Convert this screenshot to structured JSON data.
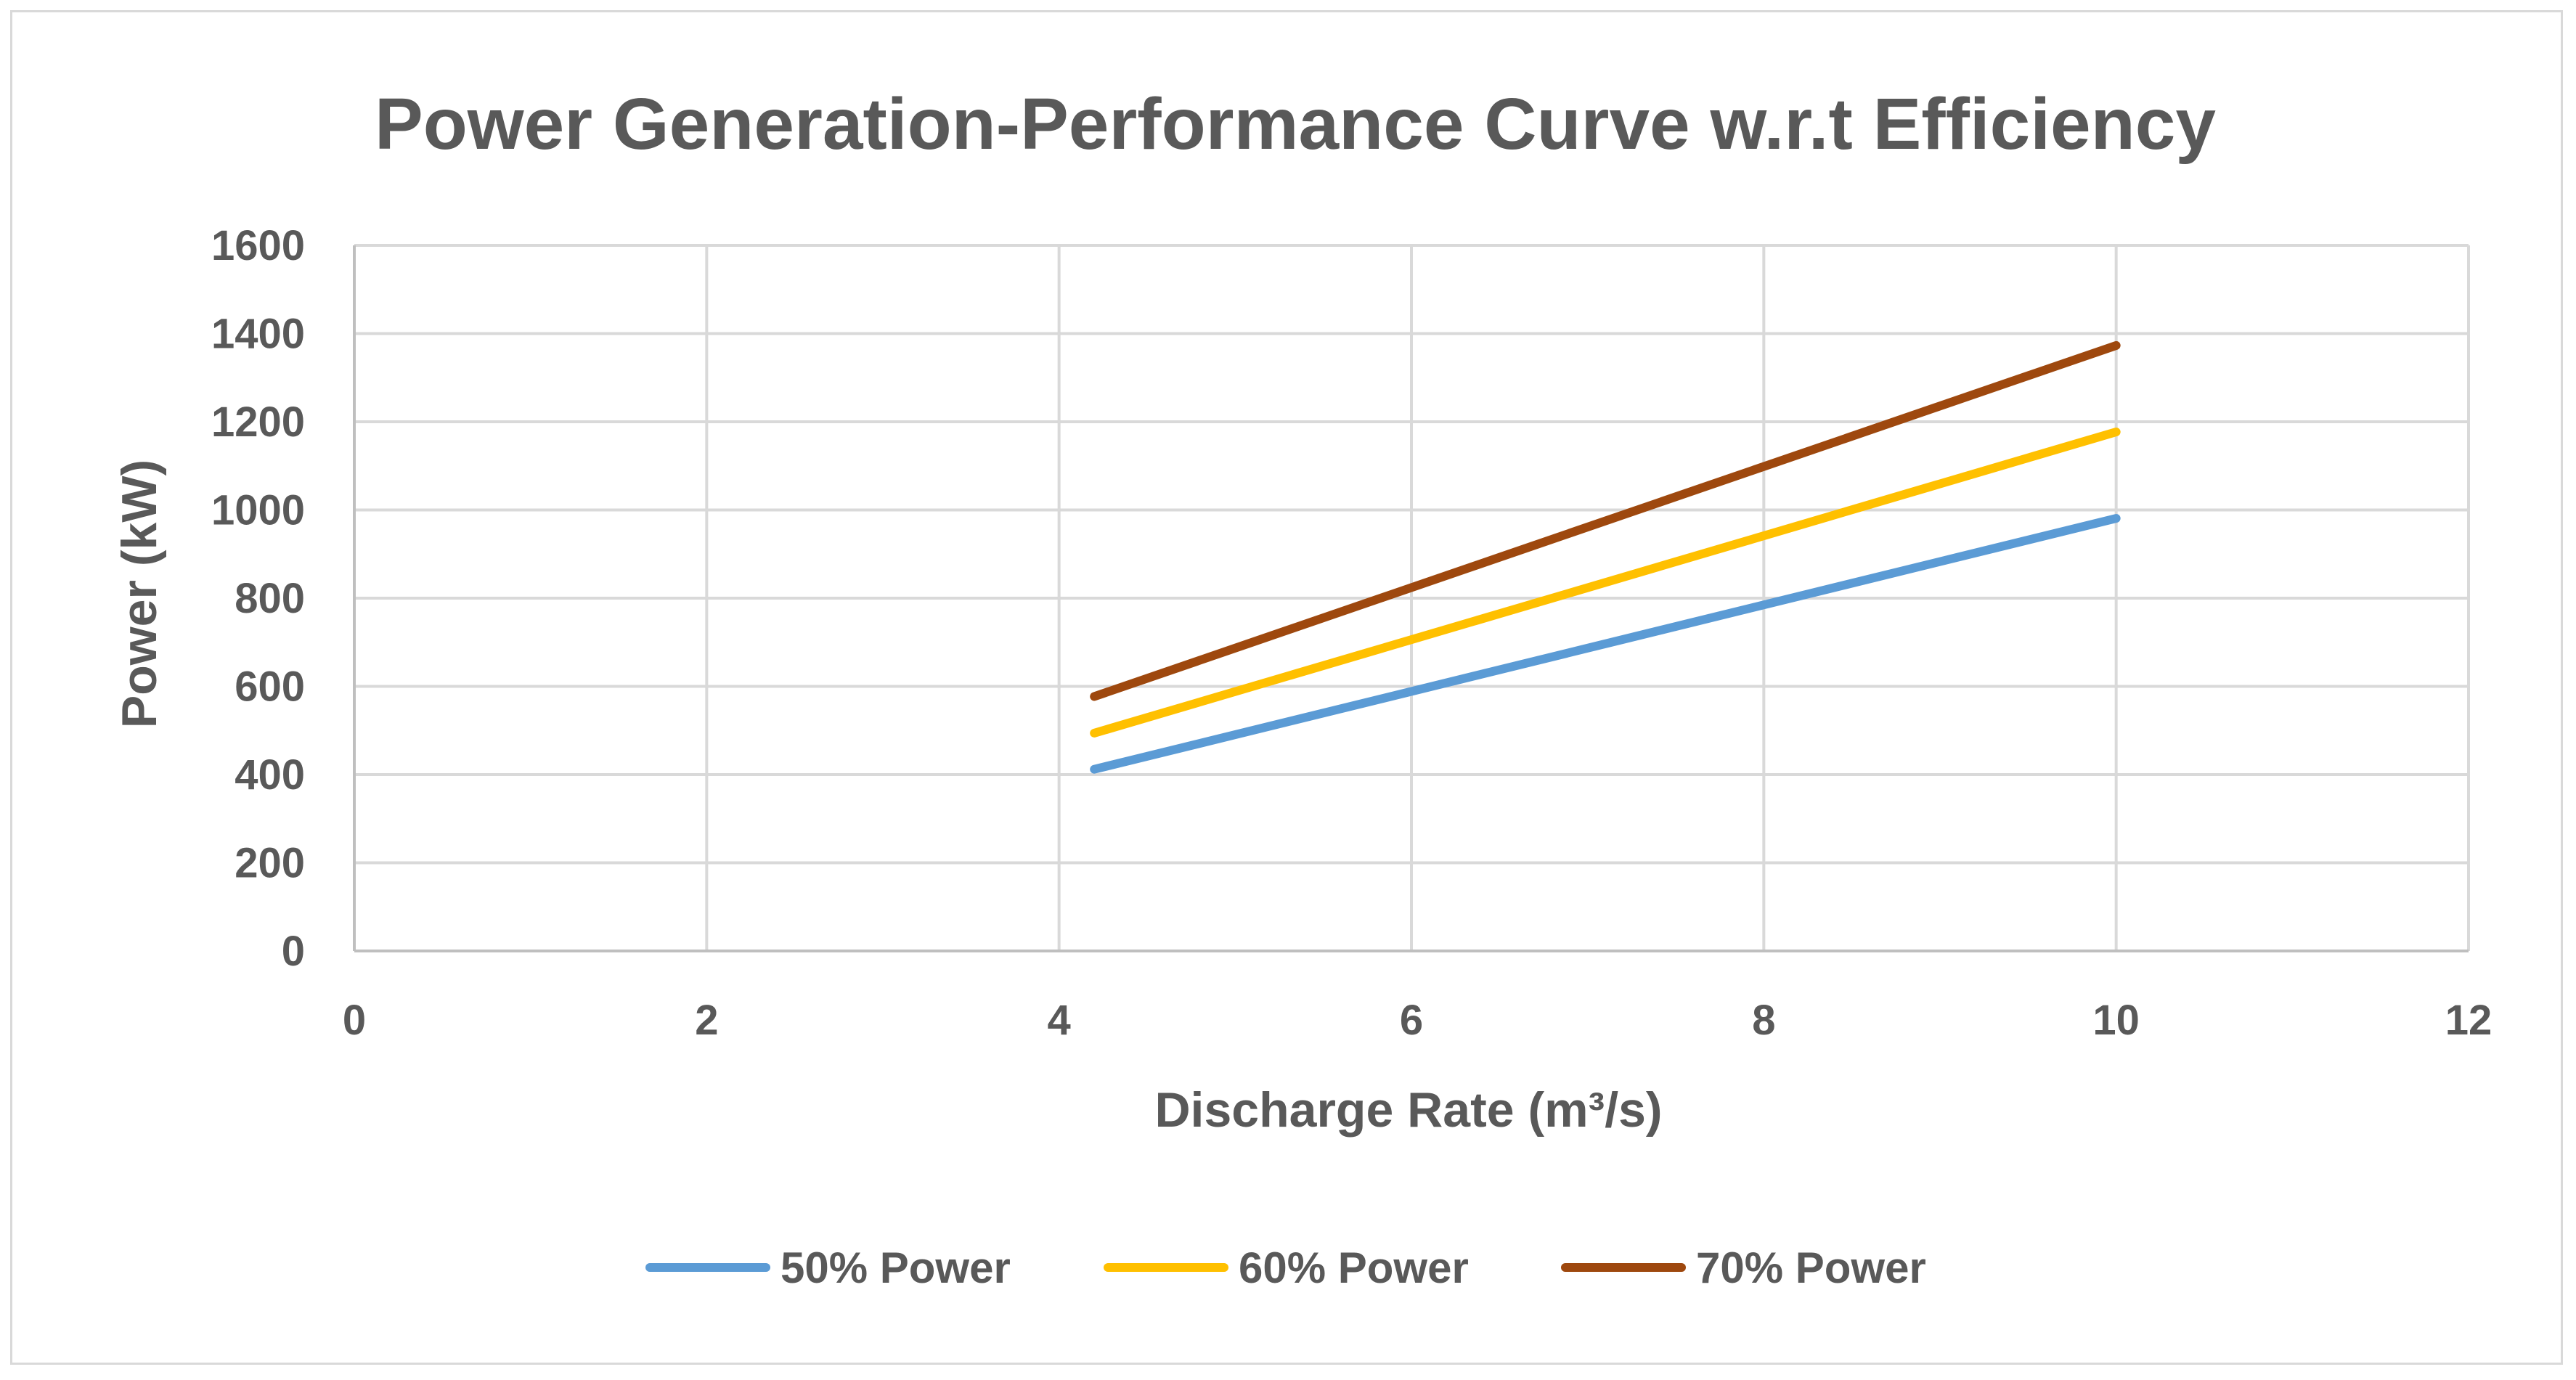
{
  "chart_data": {
    "type": "line",
    "title": "Power Generation-Performance Curve w.r.t Efficiency",
    "xlabel": "Discharge Rate (m³/s)",
    "ylabel": "Power (kW)",
    "xlim": [
      0,
      12
    ],
    "ylim": [
      0,
      1600
    ],
    "xticks": [
      0,
      2,
      4,
      6,
      8,
      10,
      12
    ],
    "yticks": [
      0,
      200,
      400,
      600,
      800,
      1000,
      1200,
      1400,
      1600
    ],
    "grid": true,
    "legend_position": "bottom",
    "x": [
      4.2,
      10
    ],
    "series": [
      {
        "name": "50% Power",
        "values": [
          412,
          981
        ],
        "color": "#5B9BD5"
      },
      {
        "name": "60% Power",
        "values": [
          494,
          1177
        ],
        "color": "#FFC000"
      },
      {
        "name": "70% Power",
        "values": [
          577,
          1373
        ],
        "color": "#9E480E"
      }
    ]
  }
}
